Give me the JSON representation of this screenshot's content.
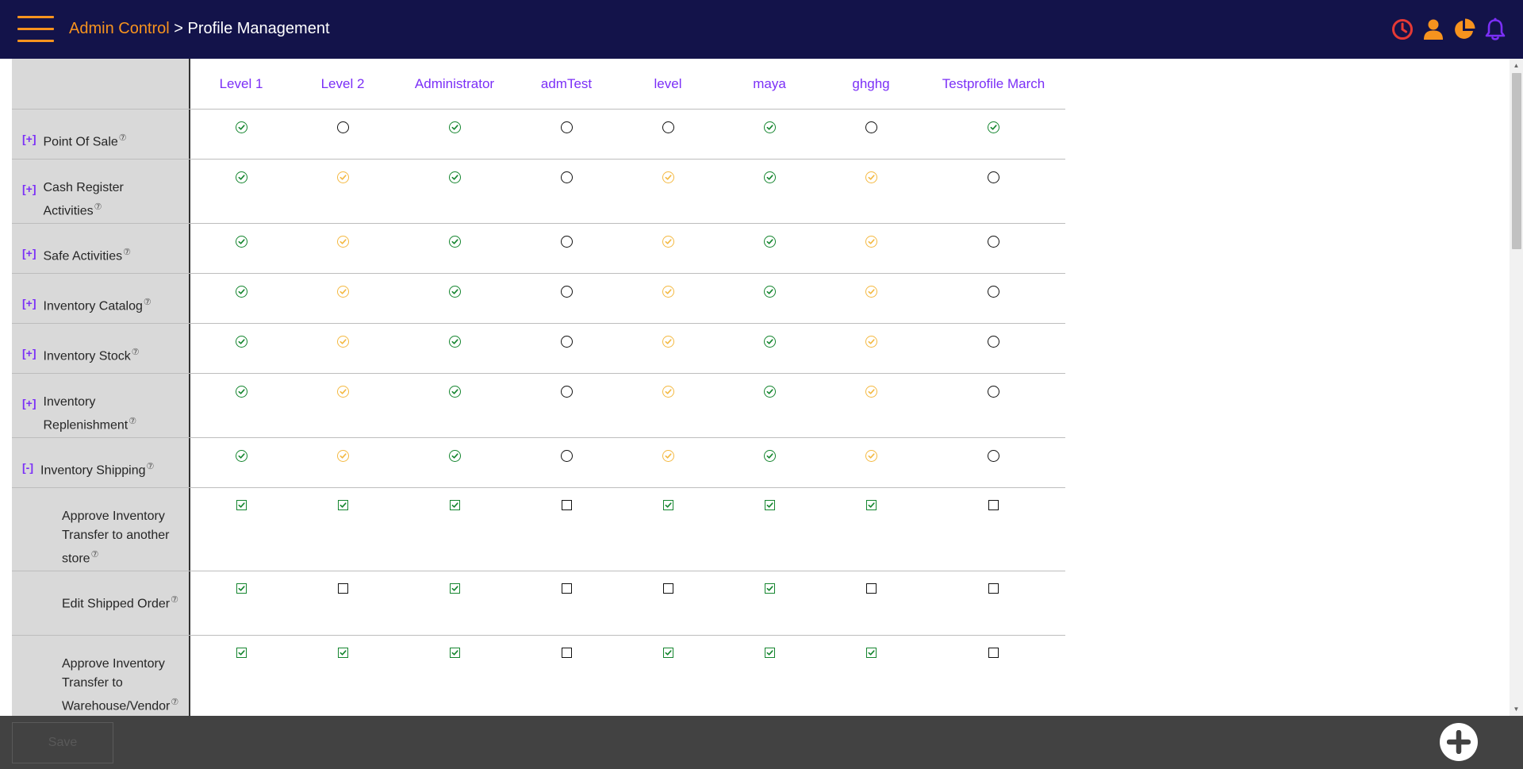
{
  "header": {
    "breadcrumb_parent": "Admin Control",
    "breadcrumb_separator": " > ",
    "breadcrumb_current": "Profile Management",
    "icons": [
      "clock-icon",
      "user-icon",
      "pie-chart-icon",
      "bell-icon"
    ]
  },
  "colors": {
    "header_bg": "#13134a",
    "accent_orange": "#f7931e",
    "accent_purple": "#7b2ff7",
    "full_access_green": "#14852e",
    "partial_access_yellow": "#f4b942"
  },
  "table": {
    "profiles": [
      "Level 1",
      "Level 2",
      "Administrator",
      "admTest",
      "level",
      "maya",
      "ghghg",
      "Testprofile March"
    ],
    "help_symbol": "⑦",
    "rows": [
      {
        "label": "Point Of Sale",
        "toggle": "[+]",
        "values": [
          "full",
          "none",
          "full",
          "none",
          "none",
          "full",
          "none",
          "full"
        ]
      },
      {
        "label": "Cash Register Activities",
        "toggle": "[+]",
        "values": [
          "full",
          "partial",
          "full",
          "none",
          "partial",
          "full",
          "partial",
          "none"
        ]
      },
      {
        "label": "Safe Activities",
        "toggle": "[+]",
        "values": [
          "full",
          "partial",
          "full",
          "none",
          "partial",
          "full",
          "partial",
          "none"
        ]
      },
      {
        "label": "Inventory Catalog",
        "toggle": "[+]",
        "values": [
          "full",
          "partial",
          "full",
          "none",
          "partial",
          "full",
          "partial",
          "none"
        ]
      },
      {
        "label": "Inventory Stock",
        "toggle": "[+]",
        "values": [
          "full",
          "partial",
          "full",
          "none",
          "partial",
          "full",
          "partial",
          "none"
        ]
      },
      {
        "label": "Inventory Replenishment",
        "toggle": "[+]",
        "values": [
          "full",
          "partial",
          "full",
          "none",
          "partial",
          "full",
          "partial",
          "none"
        ]
      },
      {
        "label": "Inventory Shipping",
        "toggle": "[-]",
        "values": [
          "full",
          "partial",
          "full",
          "none",
          "partial",
          "full",
          "partial",
          "none"
        ]
      },
      {
        "label": "Approve Inventory Transfer to another store",
        "child": true,
        "values": [
          true,
          true,
          true,
          false,
          true,
          true,
          true,
          false
        ]
      },
      {
        "label": "Edit Shipped Order",
        "child": true,
        "values": [
          true,
          false,
          true,
          false,
          false,
          true,
          false,
          false
        ]
      },
      {
        "label": "Approve Inventory Transfer to Warehouse/Vendor",
        "child": true,
        "values": [
          true,
          true,
          true,
          false,
          true,
          true,
          true,
          false
        ]
      }
    ]
  },
  "footer": {
    "save_label": "Save",
    "add_icon": "plus-icon"
  }
}
